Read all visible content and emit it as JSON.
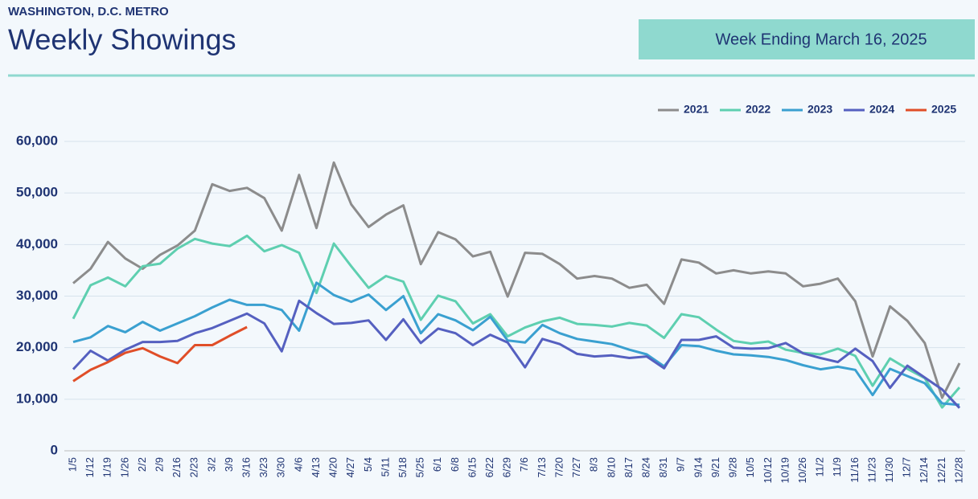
{
  "header": {
    "region": "WASHINGTON, D.C. METRO",
    "title": "Weekly Showings",
    "week": "Week Ending March 16, 2025"
  },
  "chart_data": {
    "type": "line",
    "categories": [
      "1/5",
      "1/12",
      "1/19",
      "1/26",
      "2/2",
      "2/9",
      "2/16",
      "2/23",
      "3/2",
      "3/9",
      "3/16",
      "3/23",
      "3/30",
      "4/6",
      "4/13",
      "4/20",
      "4/27",
      "5/4",
      "5/11",
      "5/18",
      "5/25",
      "6/1",
      "6/8",
      "6/15",
      "6/22",
      "6/29",
      "7/6",
      "7/13",
      "7/20",
      "7/27",
      "8/3",
      "8/10",
      "8/17",
      "8/24",
      "8/31",
      "9/7",
      "9/14",
      "9/21",
      "9/28",
      "10/5",
      "10/12",
      "10/19",
      "10/26",
      "11/2",
      "11/9",
      "11/16",
      "11/23",
      "11/30",
      "12/7",
      "12/14",
      "12/21",
      "12/28"
    ],
    "series": [
      {
        "name": "2021",
        "color": "#8c8c8c",
        "values": [
          32500,
          35300,
          40500,
          37300,
          35300,
          38000,
          39800,
          42700,
          51700,
          50400,
          51000,
          49000,
          42700,
          53500,
          43200,
          55900,
          47800,
          43400,
          45800,
          47600,
          36200,
          42400,
          41000,
          37700,
          38600,
          29900,
          38400,
          38200,
          36200,
          33400,
          33900,
          33400,
          31600,
          32200,
          28500,
          37100,
          36500,
          34400,
          35000,
          34400,
          34800,
          34400,
          31900,
          32400,
          33400,
          29000,
          18300,
          28000,
          25200,
          20900,
          10300,
          17000
        ]
      },
      {
        "name": "2022",
        "color": "#5ecfb0",
        "values": [
          25600,
          32100,
          33600,
          31900,
          35800,
          36300,
          39200,
          41100,
          40200,
          39700,
          41700,
          38700,
          39900,
          38400,
          30600,
          40200,
          35800,
          31600,
          33900,
          32800,
          25400,
          30100,
          29000,
          24700,
          26500,
          22200,
          23900,
          25100,
          25800,
          24600,
          24400,
          24100,
          24800,
          24300,
          21900,
          26500,
          25900,
          23500,
          21300,
          20800,
          21200,
          19600,
          19000,
          18700,
          19800,
          18400,
          12600,
          17900,
          15900,
          14100,
          8400,
          12300
        ]
      },
      {
        "name": "2023",
        "color": "#3aa0d0",
        "values": [
          21100,
          22000,
          24200,
          23000,
          25000,
          23300,
          24700,
          26100,
          27800,
          29300,
          28300,
          28300,
          27300,
          23300,
          32600,
          30200,
          28900,
          30300,
          27300,
          30000,
          22800,
          26500,
          25300,
          23400,
          26000,
          21400,
          21000,
          24400,
          22800,
          21700,
          21200,
          20700,
          19600,
          18700,
          16400,
          20500,
          20300,
          19400,
          18700,
          18500,
          18200,
          17600,
          16600,
          15800,
          16300,
          15700,
          10800,
          15900,
          14500,
          13100,
          9200,
          8900
        ]
      },
      {
        "name": "2024",
        "color": "#5560c0",
        "values": [
          15800,
          19400,
          17500,
          19600,
          21100,
          21100,
          21300,
          22800,
          23800,
          25200,
          26600,
          24700,
          19300,
          29100,
          26700,
          24600,
          24800,
          25300,
          21500,
          25500,
          20900,
          23700,
          22800,
          20500,
          22500,
          21000,
          16200,
          21700,
          20700,
          18800,
          18300,
          18500,
          18000,
          18300,
          16000,
          21500,
          21500,
          22200,
          20000,
          19800,
          19900,
          20900,
          18900,
          18000,
          17200,
          19800,
          17400,
          12200,
          16500,
          14200,
          11900,
          8300
        ]
      },
      {
        "name": "2025",
        "color": "#e04e28",
        "values": [
          13500,
          15700,
          17200,
          19000,
          19900,
          18300,
          17000,
          20500,
          20500,
          22300,
          24000,
          null,
          null,
          null,
          null,
          null,
          null,
          null,
          null,
          null,
          null,
          null,
          null,
          null,
          null,
          null,
          null,
          null,
          null,
          null,
          null,
          null,
          null,
          null,
          null,
          null,
          null,
          null,
          null,
          null,
          null,
          null,
          null,
          null,
          null,
          null,
          null,
          null,
          null,
          null,
          null,
          null
        ]
      }
    ],
    "ylim": [
      0,
      60000
    ],
    "yticks": [
      0,
      {
        "value": 10000,
        "label": "10,000"
      },
      {
        "value": 20000,
        "label": "20,000"
      },
      {
        "value": 30000,
        "label": "30,000"
      },
      {
        "value": 40000,
        "label": "40,000"
      },
      {
        "value": 50000,
        "label": "50,000"
      },
      {
        "value": 60000,
        "label": "60,000"
      }
    ],
    "grid": true,
    "legend": "top-right"
  }
}
